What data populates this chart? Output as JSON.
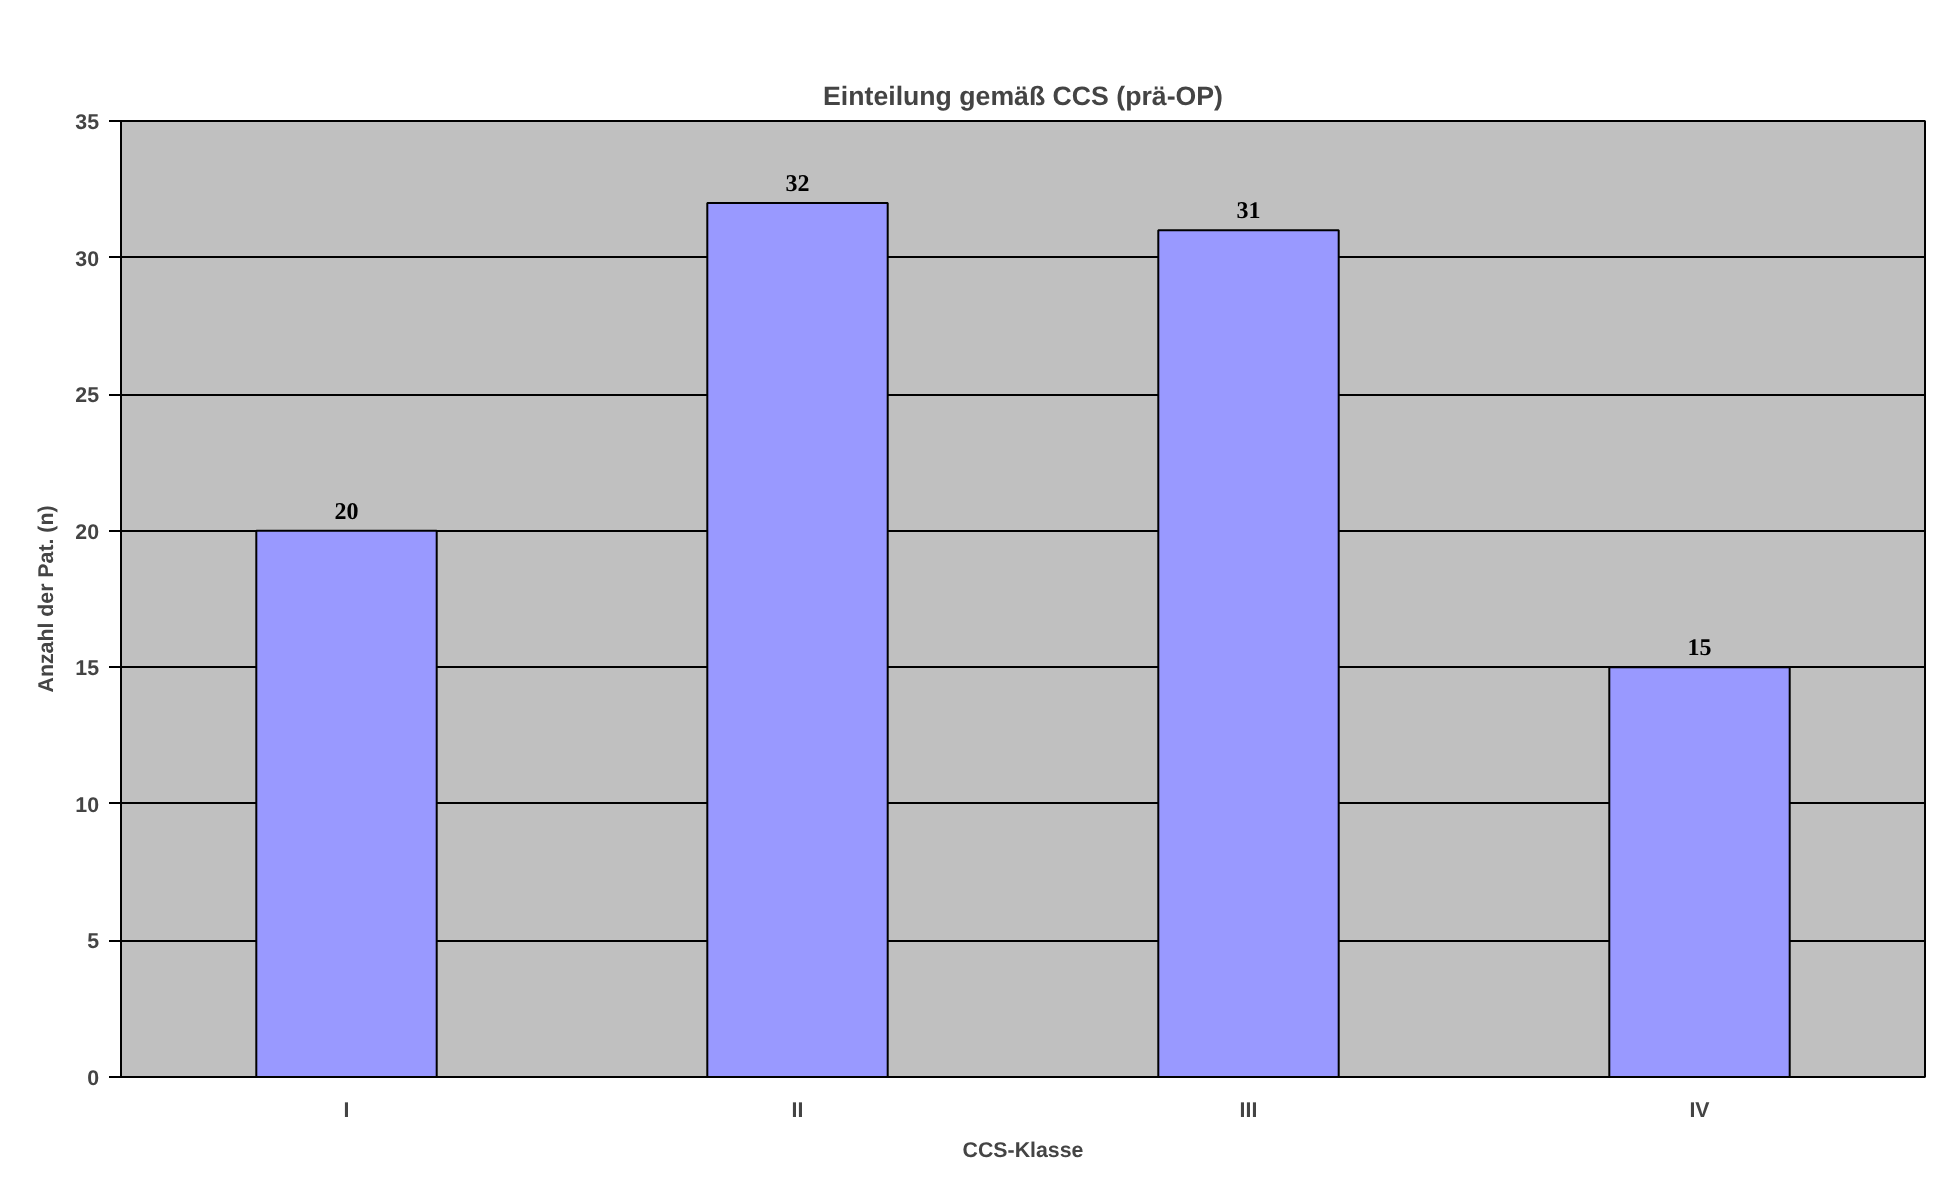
{
  "chart_data": {
    "type": "bar",
    "title": "Einteilung gemäß CCS (prä-OP)",
    "xlabel": "CCS-Klasse",
    "ylabel": "Anzahl der Pat. (n)",
    "categories": [
      "I",
      "II",
      "III",
      "IV"
    ],
    "values": [
      20,
      32,
      31,
      15
    ],
    "color": "#9999ff",
    "ylim": [
      0,
      35
    ],
    "yticks": [
      0,
      5,
      10,
      15,
      20,
      25,
      30,
      35
    ],
    "grid": "y",
    "data_labels": true
  }
}
